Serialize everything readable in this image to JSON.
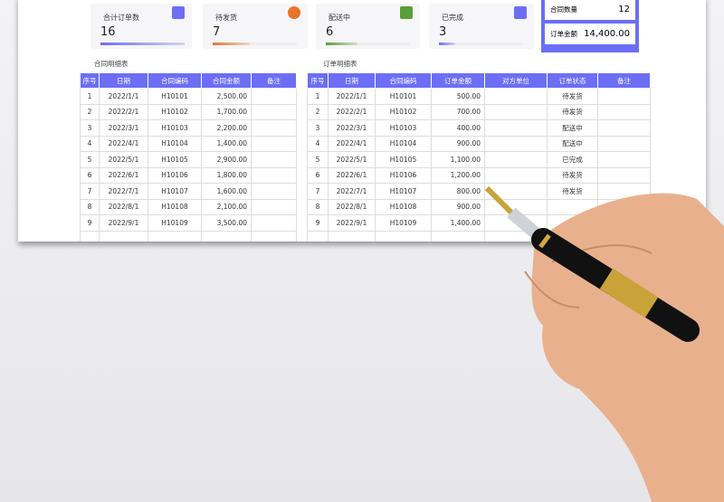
{
  "cards": [
    {
      "label": "合计订单数",
      "value": "16",
      "icon": "presentation-chart-icon",
      "color": "#6c6ef5",
      "progress": 1.0
    },
    {
      "label": "待发货",
      "value": "7",
      "icon": "pie-chart-icon",
      "color": "#e8742a",
      "progress": 0.44
    },
    {
      "label": "配送中",
      "value": "6",
      "icon": "calculator-icon",
      "color": "#5a9e3a",
      "progress": 0.38
    },
    {
      "label": "已完成",
      "value": "3",
      "icon": "money-bag-icon",
      "color": "#6c6ef5",
      "progress": 0.19
    }
  ],
  "summary": {
    "contract_count_label": "合同数量",
    "contract_count": "12",
    "order_amount_label": "订单金额",
    "order_amount": "14,400.00"
  },
  "contract_table": {
    "title": "合同明细表",
    "headers": [
      "序号",
      "日期",
      "合同编码",
      "合同金额",
      "备注"
    ],
    "rows": [
      [
        "1",
        "2022/1/1",
        "H10101",
        "2,500.00",
        ""
      ],
      [
        "2",
        "2022/2/1",
        "H10102",
        "1,700.00",
        ""
      ],
      [
        "3",
        "2022/3/1",
        "H10103",
        "2,200.00",
        ""
      ],
      [
        "4",
        "2022/4/1",
        "H10104",
        "1,400.00",
        ""
      ],
      [
        "5",
        "2022/5/1",
        "H10105",
        "2,900.00",
        ""
      ],
      [
        "6",
        "2022/6/1",
        "H10106",
        "1,800.00",
        ""
      ],
      [
        "7",
        "2022/7/1",
        "H10107",
        "1,600.00",
        ""
      ],
      [
        "8",
        "2022/8/1",
        "H10108",
        "2,100.00",
        ""
      ],
      [
        "9",
        "2022/9/1",
        "H10109",
        "3,500.00",
        ""
      ]
    ]
  },
  "order_table": {
    "title": "订单明细表",
    "headers": [
      "序号",
      "日期",
      "合同编码",
      "订单金额",
      "对方单位",
      "订单状态",
      "备注"
    ],
    "rows": [
      [
        "1",
        "2022/1/1",
        "H10101",
        "500.00",
        "",
        "待发货",
        ""
      ],
      [
        "2",
        "2022/2/1",
        "H10102",
        "700.00",
        "",
        "待发货",
        ""
      ],
      [
        "3",
        "2022/3/1",
        "H10103",
        "400.00",
        "",
        "配送中",
        ""
      ],
      [
        "4",
        "2022/4/1",
        "H10104",
        "900.00",
        "",
        "配送中",
        ""
      ],
      [
        "5",
        "2022/5/1",
        "H10105",
        "1,100.00",
        "",
        "已完成",
        ""
      ],
      [
        "6",
        "2022/6/1",
        "H10106",
        "1,200.00",
        "",
        "待发货",
        ""
      ],
      [
        "7",
        "2022/7/1",
        "H10107",
        "800.00",
        "",
        "待发货",
        ""
      ],
      [
        "8",
        "2022/8/1",
        "H10108",
        "900.00",
        "",
        "",
        ""
      ],
      [
        "9",
        "2022/9/1",
        "H10109",
        "1,400.00",
        "",
        "",
        ""
      ]
    ]
  }
}
